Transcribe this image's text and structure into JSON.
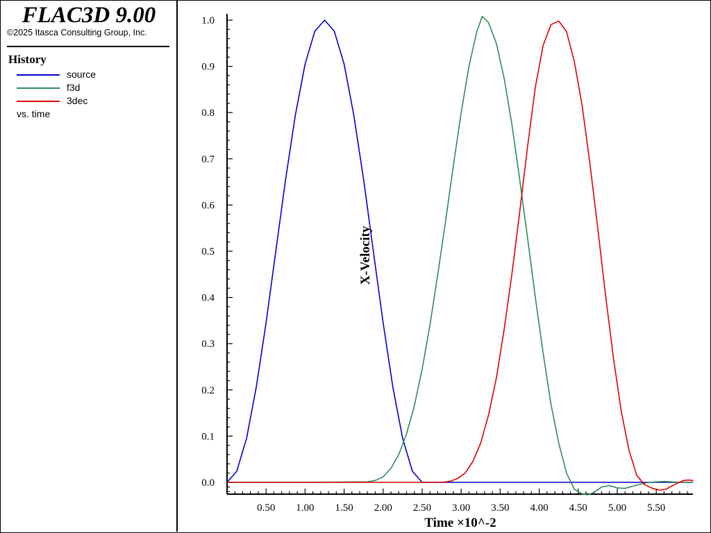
{
  "app": {
    "title": "FLAC3D 9.00",
    "copyright": "©2025 Itasca Consulting Group, Inc."
  },
  "legend": {
    "heading": "History",
    "items": [
      {
        "label": "source",
        "color": "#0000cc"
      },
      {
        "label": "f3d",
        "color": "#2e8b57"
      },
      {
        "label": "3dec",
        "color": "#dd0000"
      }
    ],
    "footer": "vs. time"
  },
  "chart_data": {
    "type": "line",
    "xlabel": "Time ×10^-2",
    "ylabel": "X-Velocity",
    "xlim": [
      0,
      5.97
    ],
    "ylim": [
      -0.025,
      1.015
    ],
    "xticks": [
      "0.50",
      "1.00",
      "1.50",
      "2.00",
      "2.50",
      "3.00",
      "3.50",
      "4.00",
      "4.50",
      "5.00",
      "5.50"
    ],
    "yticks": [
      "0.0",
      "0.1",
      "0.2",
      "0.3",
      "0.4",
      "0.5",
      "0.6",
      "0.7",
      "0.8",
      "0.9",
      "1.0"
    ],
    "grid": false,
    "series": [
      {
        "name": "source",
        "color": "#0000cc",
        "x": [
          0,
          0.125,
          0.25,
          0.375,
          0.5,
          0.625,
          0.75,
          0.875,
          1.0,
          1.125,
          1.25,
          1.375,
          1.5,
          1.625,
          1.75,
          1.875,
          2.0,
          2.125,
          2.25,
          2.375,
          2.5,
          3.0,
          4.0,
          5.0,
          5.97
        ],
        "y": [
          0,
          0.024,
          0.095,
          0.206,
          0.345,
          0.5,
          0.655,
          0.794,
          0.905,
          0.976,
          1.0,
          0.976,
          0.905,
          0.794,
          0.655,
          0.5,
          0.345,
          0.206,
          0.095,
          0.024,
          0,
          0,
          0,
          0,
          0
        ]
      },
      {
        "name": "f3d",
        "color": "#2e8b57",
        "x": [
          0,
          1.0,
          1.8,
          1.9,
          2.0,
          2.1,
          2.2,
          2.3,
          2.4,
          2.5,
          2.6,
          2.7,
          2.8,
          2.9,
          3.0,
          3.1,
          3.2,
          3.27,
          3.35,
          3.45,
          3.55,
          3.65,
          3.75,
          3.85,
          3.95,
          4.05,
          4.15,
          4.25,
          4.35,
          4.45,
          4.55,
          4.62,
          4.7,
          4.8,
          4.9,
          5.0,
          5.1,
          5.25,
          5.4,
          5.6,
          5.8,
          5.97
        ],
        "y": [
          0,
          0,
          0.001,
          0.004,
          0.012,
          0.03,
          0.06,
          0.105,
          0.165,
          0.245,
          0.34,
          0.45,
          0.565,
          0.685,
          0.8,
          0.9,
          0.975,
          1.008,
          0.995,
          0.95,
          0.875,
          0.775,
          0.655,
          0.53,
          0.4,
          0.28,
          0.17,
          0.085,
          0.02,
          -0.015,
          -0.025,
          -0.027,
          -0.022,
          -0.01,
          -0.007,
          -0.012,
          -0.013,
          -0.006,
          0.0,
          0.002,
          0.0,
          0.0
        ]
      },
      {
        "name": "3dec",
        "color": "#dd0000",
        "x": [
          0,
          1.0,
          2.0,
          2.75,
          2.85,
          2.95,
          3.05,
          3.15,
          3.25,
          3.35,
          3.45,
          3.55,
          3.65,
          3.75,
          3.85,
          3.95,
          4.05,
          4.15,
          4.25,
          4.35,
          4.45,
          4.55,
          4.65,
          4.75,
          4.85,
          4.95,
          5.05,
          5.15,
          5.25,
          5.35,
          5.45,
          5.55,
          5.62,
          5.7,
          5.78,
          5.85,
          5.92,
          5.97
        ],
        "y": [
          0,
          0,
          0,
          0.0,
          0.002,
          0.008,
          0.02,
          0.045,
          0.085,
          0.145,
          0.225,
          0.33,
          0.45,
          0.585,
          0.725,
          0.855,
          0.945,
          0.99,
          0.998,
          0.975,
          0.91,
          0.815,
          0.69,
          0.55,
          0.405,
          0.27,
          0.155,
          0.07,
          0.015,
          -0.005,
          -0.013,
          -0.017,
          -0.015,
          -0.008,
          -0.001,
          0.004,
          0.005,
          0.004
        ]
      }
    ]
  }
}
